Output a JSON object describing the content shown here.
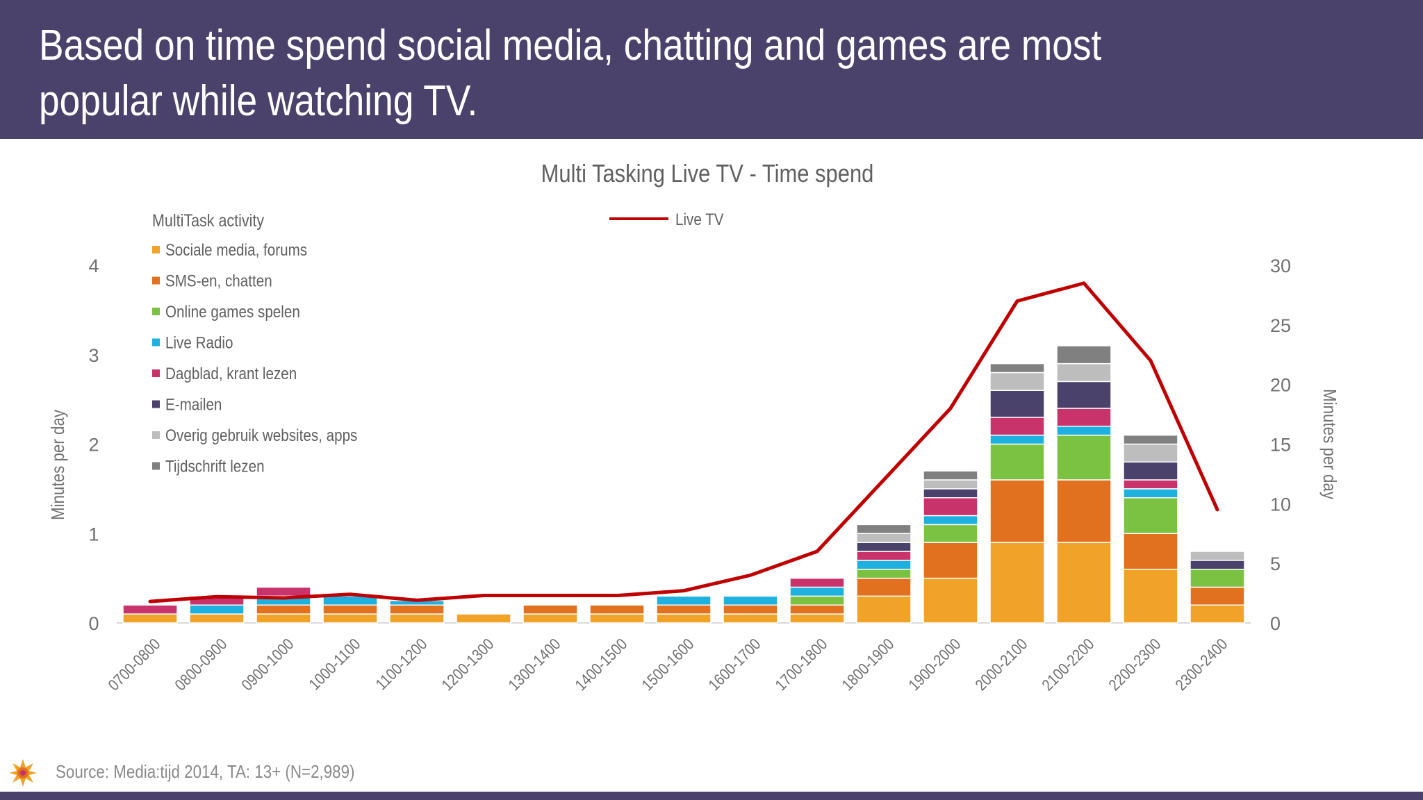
{
  "header": {
    "title": "Based on time spend social media, chatting and games are most popular while watching TV."
  },
  "footer": {
    "source": "Source: Media:tijd 2014, TA: 13+ (N=2,989)"
  },
  "chart_data": {
    "type": "bar",
    "stacked": true,
    "title": "Multi Tasking Live TV - Time spend",
    "ylabel": "Minutes per day",
    "y2label": "Minutes per day",
    "ylim": [
      0,
      4
    ],
    "y2lim": [
      0,
      30
    ],
    "yticks": [
      0,
      1,
      2,
      3,
      4
    ],
    "y2ticks": [
      0,
      5,
      10,
      15,
      20,
      25,
      30
    ],
    "grid": false,
    "legend_title": "MultiTask activity",
    "legend_position": "top-left",
    "categories": [
      "0700-0800",
      "0800-0900",
      "0900-1000",
      "1000-1100",
      "1100-1200",
      "1200-1300",
      "1300-1400",
      "1400-1500",
      "1500-1600",
      "1600-1700",
      "1700-1800",
      "1800-1900",
      "1900-2000",
      "2000-2100",
      "2100-2200",
      "2200-2300",
      "2300-2400"
    ],
    "series": [
      {
        "name": "Sociale media, forums",
        "color": "#f0a328",
        "values": [
          0.1,
          0.1,
          0.1,
          0.1,
          0.1,
          0.1,
          0.1,
          0.1,
          0.1,
          0.1,
          0.1,
          0.3,
          0.5,
          0.9,
          0.9,
          0.6,
          0.2
        ]
      },
      {
        "name": "SMS-en, chatten",
        "color": "#e2711f",
        "values": [
          0,
          0,
          0.1,
          0.1,
          0.1,
          0,
          0.1,
          0.1,
          0.1,
          0.1,
          0.1,
          0.2,
          0.4,
          0.7,
          0.7,
          0.4,
          0.2
        ]
      },
      {
        "name": "Online games spelen",
        "color": "#7cc242",
        "values": [
          0,
          0,
          0,
          0,
          0,
          0,
          0,
          0,
          0,
          0,
          0.1,
          0.1,
          0.2,
          0.4,
          0.5,
          0.4,
          0.2
        ]
      },
      {
        "name": "Live Radio",
        "color": "#1eb1df",
        "values": [
          0,
          0.1,
          0.1,
          0.1,
          0.05,
          0,
          0,
          0,
          0.1,
          0.1,
          0.1,
          0.1,
          0.1,
          0.1,
          0.1,
          0.1,
          0
        ]
      },
      {
        "name": "Dagblad, krant lezen",
        "color": "#c9336b",
        "values": [
          0.1,
          0.1,
          0.1,
          0,
          0,
          0,
          0,
          0,
          0,
          0,
          0.1,
          0.1,
          0.2,
          0.2,
          0.2,
          0.1,
          0
        ]
      },
      {
        "name": "E-mailen",
        "color": "#4a426b",
        "values": [
          0,
          0,
          0,
          0,
          0,
          0,
          0,
          0,
          0,
          0,
          0,
          0.1,
          0.1,
          0.3,
          0.3,
          0.2,
          0.1
        ]
      },
      {
        "name": "Overig gebruik websites, apps",
        "color": "#bdbdbd",
        "values": [
          0,
          0,
          0,
          0,
          0,
          0,
          0,
          0,
          0,
          0,
          0,
          0.1,
          0.1,
          0.2,
          0.2,
          0.2,
          0.1
        ]
      },
      {
        "name": "Tijdschrift lezen",
        "color": "#808080",
        "values": [
          0,
          0,
          0,
          0,
          0,
          0,
          0,
          0,
          0,
          0,
          0,
          0.1,
          0.1,
          0.1,
          0.2,
          0.1,
          0
        ]
      }
    ],
    "line_series": {
      "name": "Live TV",
      "color": "#c00000",
      "axis": "right",
      "values": [
        1.8,
        2.2,
        2.1,
        2.4,
        1.9,
        2.3,
        2.3,
        2.3,
        2.7,
        4.0,
        6.0,
        12.0,
        18.0,
        27.0,
        28.5,
        22.0,
        9.5
      ]
    }
  }
}
